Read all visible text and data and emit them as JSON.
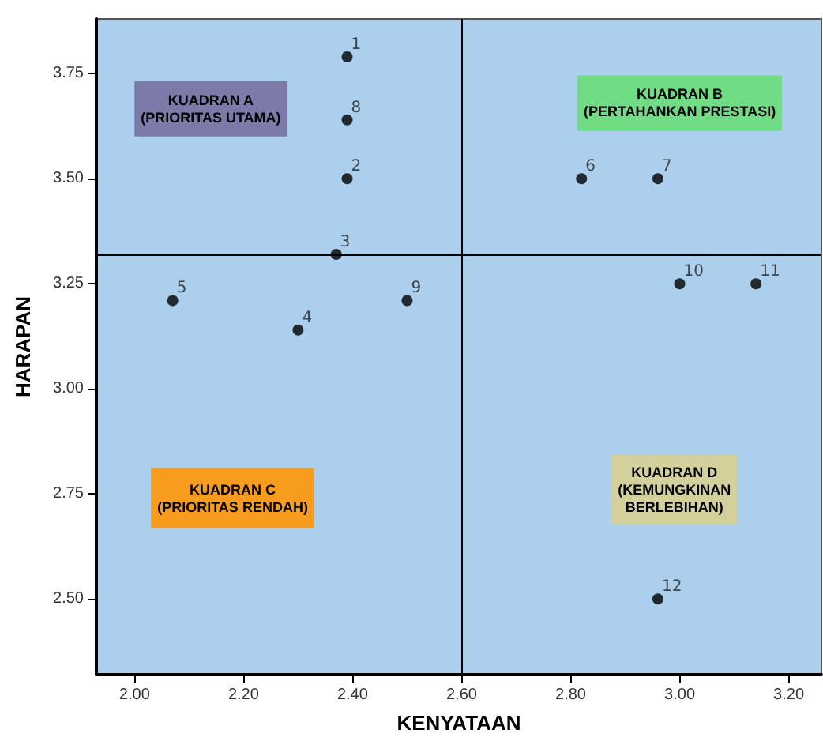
{
  "chart_data": {
    "type": "scatter",
    "xlabel": "KENYATAAN",
    "ylabel": "HARAPAN",
    "series": [
      {
        "name": "1",
        "color": "#000000",
        "x": [
          2.39
        ],
        "values": [
          3.79
        ]
      },
      {
        "name": "2",
        "color": "#000000",
        "x": [
          2.39
        ],
        "values": [
          3.5
        ]
      },
      {
        "name": "3",
        "color": "#000000",
        "x": [
          2.37
        ],
        "values": [
          3.32
        ]
      },
      {
        "name": "4",
        "color": "#000000",
        "x": [
          2.3
        ],
        "values": [
          3.14
        ]
      },
      {
        "name": "5",
        "color": "#000000",
        "x": [
          2.07
        ],
        "values": [
          3.21
        ]
      },
      {
        "name": "6",
        "color": "#000000",
        "x": [
          2.82
        ],
        "values": [
          3.5
        ]
      },
      {
        "name": "7",
        "color": "#000000",
        "x": [
          2.96
        ],
        "values": [
          3.5
        ]
      },
      {
        "name": "8",
        "color": "#000000",
        "x": [
          2.39
        ],
        "values": [
          3.64
        ]
      },
      {
        "name": "9",
        "color": "#000000",
        "x": [
          2.5
        ],
        "values": [
          3.21
        ]
      },
      {
        "name": "10",
        "color": "#000000",
        "x": [
          3.0
        ],
        "values": [
          3.25
        ]
      },
      {
        "name": "11",
        "color": "#000000",
        "x": [
          3.14
        ],
        "values": [
          3.25
        ]
      },
      {
        "name": "12",
        "color": "#000000",
        "x": [
          2.96
        ],
        "values": [
          2.5
        ]
      }
    ],
    "marker": "circle",
    "grid": false,
    "legend": false,
    "xlim": [
      1.93,
      3.26
    ],
    "xticks": [
      {
        "value": 2.0,
        "label": "2.00"
      },
      {
        "value": 2.2,
        "label": "2.20"
      },
      {
        "value": 2.4,
        "label": "2.40"
      },
      {
        "value": 2.6,
        "label": "2.60"
      },
      {
        "value": 2.8,
        "label": "2.80"
      },
      {
        "value": 3.0,
        "label": "3.00"
      },
      {
        "value": 3.2,
        "label": "3.20"
      }
    ],
    "ylim": [
      2.32,
      3.88
    ],
    "yticks": [
      {
        "value": 2.5,
        "label": "2.50"
      },
      {
        "value": 2.75,
        "label": "2.75"
      },
      {
        "value": 3.0,
        "label": "3.00"
      },
      {
        "value": 3.25,
        "label": "3.25"
      },
      {
        "value": 3.5,
        "label": "3.50"
      },
      {
        "value": 3.75,
        "label": "3.75"
      }
    ],
    "ref_lines": [
      {
        "axis": "x",
        "value": 2.6,
        "color": "#000000"
      },
      {
        "axis": "y",
        "value": 3.32,
        "color": "#000000"
      }
    ],
    "annotations": [
      "KUADRAN A\n(PRIORITAS UTAMA)",
      "KUADRAN B\n(PERTAHANKAN PRESTASI)",
      "KUADRAN C\n(PRIORITAS RENDAH)",
      "KUADRAN D\n(KEMUNGKINAN\nBERLEBIHAN)"
    ]
  }
}
